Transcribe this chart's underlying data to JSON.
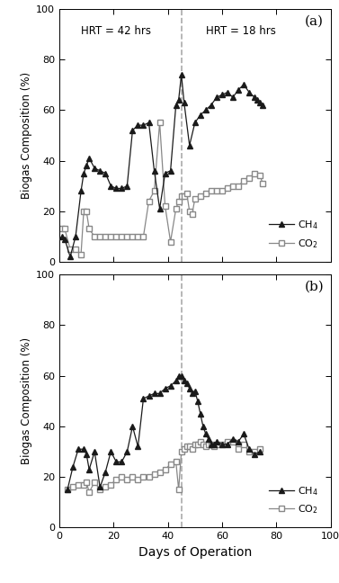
{
  "panel_a": {
    "ch4_x": [
      1,
      2,
      4,
      6,
      8,
      9,
      10,
      11,
      13,
      15,
      17,
      19,
      21,
      23,
      25,
      27,
      29,
      31,
      33,
      35,
      37,
      39,
      41,
      43,
      44,
      45,
      46,
      48,
      50,
      52,
      54,
      56,
      58,
      60,
      62,
      64,
      66,
      68,
      70,
      72,
      73,
      74,
      75
    ],
    "ch4_y": [
      10,
      9,
      2,
      10,
      28,
      35,
      38,
      41,
      37,
      36,
      35,
      30,
      29,
      29,
      30,
      52,
      54,
      54,
      55,
      36,
      21,
      35,
      36,
      62,
      64,
      74,
      63,
      46,
      55,
      58,
      60,
      62,
      65,
      66,
      67,
      65,
      68,
      70,
      67,
      65,
      64,
      63,
      62
    ],
    "co2_x": [
      1,
      2,
      4,
      6,
      8,
      9,
      10,
      11,
      13,
      15,
      17,
      19,
      21,
      23,
      25,
      27,
      29,
      31,
      33,
      35,
      37,
      39,
      41,
      43,
      44,
      45,
      46,
      47,
      48,
      49,
      50,
      52,
      54,
      56,
      58,
      60,
      62,
      64,
      66,
      68,
      70,
      72,
      74,
      75
    ],
    "co2_y": [
      13,
      13,
      5,
      5,
      3,
      20,
      20,
      13,
      10,
      10,
      10,
      10,
      10,
      10,
      10,
      10,
      10,
      10,
      24,
      28,
      55,
      22,
      8,
      21,
      24,
      26,
      26,
      27,
      20,
      19,
      25,
      26,
      27,
      28,
      28,
      28,
      29,
      30,
      30,
      32,
      33,
      35,
      34,
      31
    ],
    "label": "(a)"
  },
  "panel_b": {
    "ch4_x": [
      3,
      5,
      7,
      9,
      10,
      11,
      13,
      15,
      17,
      19,
      21,
      23,
      25,
      27,
      29,
      31,
      33,
      35,
      37,
      39,
      41,
      43,
      44,
      45,
      46,
      47,
      48,
      49,
      50,
      51,
      52,
      53,
      54,
      55,
      56,
      57,
      58,
      60,
      62,
      64,
      66,
      68,
      70,
      72,
      74
    ],
    "ch4_y": [
      15,
      24,
      31,
      31,
      29,
      23,
      30,
      16,
      22,
      30,
      26,
      26,
      30,
      40,
      32,
      51,
      52,
      53,
      53,
      55,
      56,
      58,
      60,
      60,
      58,
      57,
      55,
      53,
      54,
      50,
      45,
      40,
      37,
      35,
      33,
      33,
      34,
      33,
      33,
      35,
      34,
      37,
      31,
      29,
      30
    ],
    "co2_x": [
      3,
      5,
      7,
      9,
      10,
      11,
      13,
      15,
      17,
      19,
      21,
      23,
      25,
      27,
      29,
      31,
      33,
      35,
      37,
      39,
      41,
      43,
      44,
      45,
      46,
      47,
      48,
      49,
      50,
      51,
      52,
      53,
      54,
      55,
      56,
      57,
      58,
      60,
      62,
      64,
      66,
      68,
      70,
      72,
      74
    ],
    "co2_y": [
      15,
      16,
      17,
      17,
      18,
      14,
      18,
      15,
      16,
      17,
      19,
      20,
      19,
      20,
      19,
      20,
      20,
      21,
      22,
      23,
      25,
      26,
      15,
      30,
      31,
      32,
      32,
      31,
      33,
      33,
      34,
      33,
      32,
      33,
      33,
      32,
      33,
      33,
      34,
      34,
      31,
      33,
      30,
      30,
      31
    ],
    "label": "(b)"
  },
  "vline_x": 45,
  "xlim": [
    0,
    100
  ],
  "ylim": [
    0,
    100
  ],
  "xticks": [
    0,
    20,
    40,
    60,
    80,
    100
  ],
  "yticks": [
    0,
    20,
    40,
    60,
    80,
    100
  ],
  "xlabel": "Days of Operation",
  "ylabel": "Biogas Composition (%)",
  "hrt_left": "HRT = 42 hrs",
  "hrt_right": "HRT = 18 hrs",
  "ch4_label": "CH$_4$",
  "co2_label": "CO$_2$",
  "ch4_color": "#1a1a1a",
  "co2_color": "#888888",
  "marker_ch4": "^",
  "marker_co2": "s",
  "markersize_ch4": 4.5,
  "markersize_co2": 4.0,
  "linewidth": 0.9,
  "figsize": [
    3.77,
    6.48
  ],
  "dpi": 100
}
